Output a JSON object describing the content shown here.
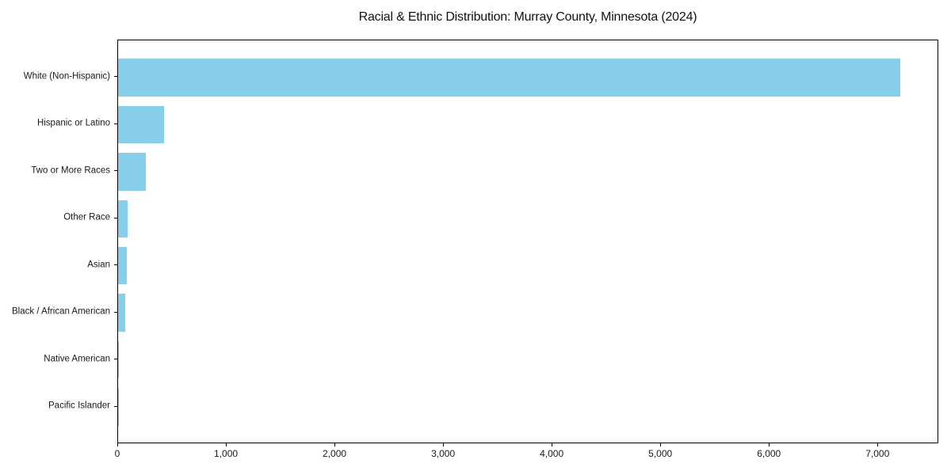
{
  "page": {
    "background": "#ffffff"
  },
  "chart_data": {
    "type": "bar",
    "orientation": "horizontal",
    "title": "Racial & Ethnic Distribution: Murray County, Minnesota (2024)",
    "categories": [
      "White (Non-Hispanic)",
      "Hispanic or Latino",
      "Two or More Races",
      "Other Race",
      "Asian",
      "Black / African American",
      "Native American",
      "Pacific Islander"
    ],
    "values": [
      7200,
      425,
      255,
      85,
      80,
      65,
      10,
      2
    ],
    "xlabel": "",
    "ylabel": "",
    "xlim": [
      0,
      7560
    ],
    "xticks": [
      0,
      1000,
      2000,
      3000,
      4000,
      5000,
      6000,
      7000
    ],
    "xtick_labels": [
      "0",
      "1,000",
      "2,000",
      "3,000",
      "4,000",
      "5,000",
      "6,000",
      "7,000"
    ],
    "bar_color": "#87CEEB",
    "spine_color": "#000000",
    "text_color": "#1a1a1a",
    "grid": false,
    "legend": null,
    "bar_height_fraction": 0.8,
    "axis_margin_fraction": 0.05
  }
}
